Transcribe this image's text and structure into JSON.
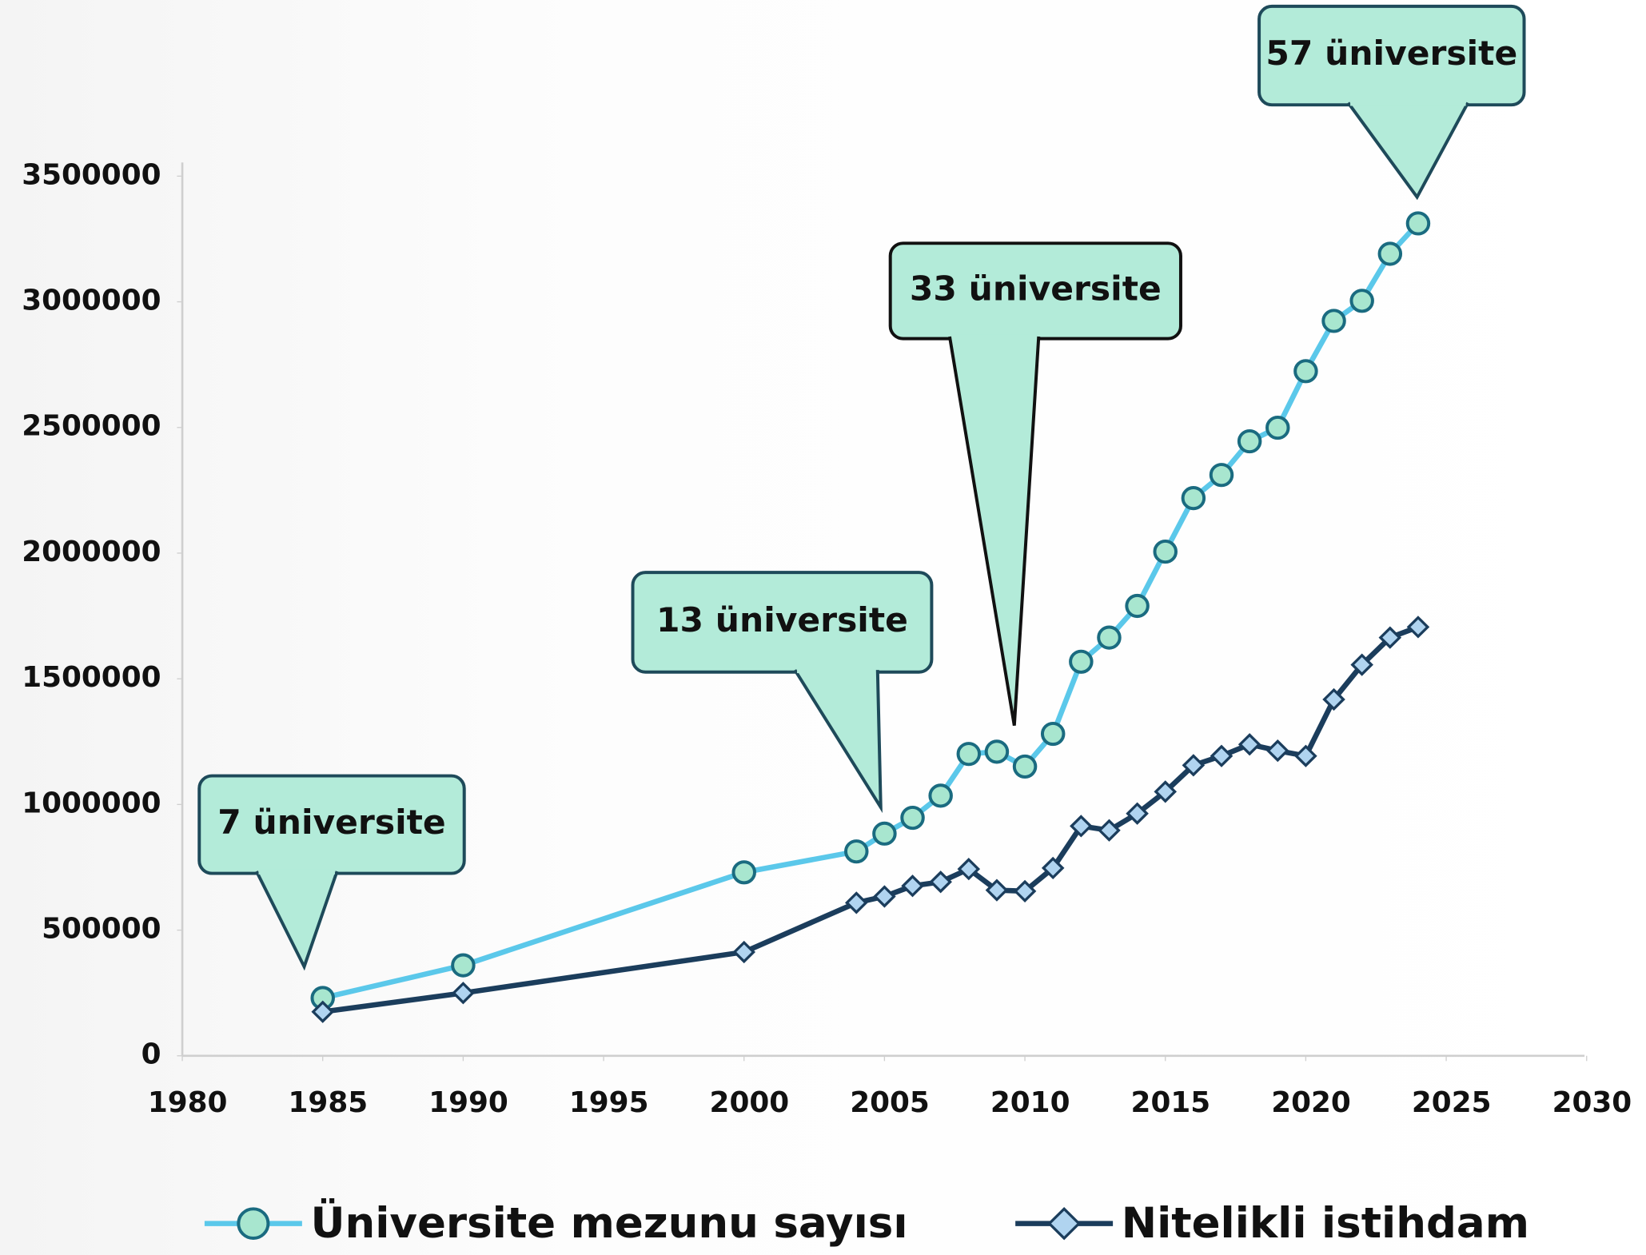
{
  "chart_data": {
    "type": "line",
    "x": [
      1985,
      1990,
      2000,
      2004,
      2005,
      2006,
      2007,
      2008,
      2009,
      2010,
      2011,
      2012,
      2013,
      2014,
      2015,
      2016,
      2017,
      2018,
      2019,
      2020,
      2021,
      2022,
      2023,
      2024
    ],
    "series": [
      {
        "name": "Üniversite mezunu sayısı",
        "color": "#5bc8ea",
        "marker": "circle",
        "values": [
          230000,
          360000,
          730000,
          813000,
          884000,
          947000,
          1035000,
          1201000,
          1210000,
          1151000,
          1281000,
          1568000,
          1664000,
          1790000,
          2006000,
          2219000,
          2311000,
          2445000,
          2499000,
          2724000,
          2924000,
          3004000,
          3191000,
          3312000
        ]
      },
      {
        "name": "Nitelikli istihdam",
        "color": "#1b3d5c",
        "marker": "diamond",
        "values": [
          175000,
          250000,
          413000,
          609000,
          634000,
          676000,
          692000,
          743000,
          659000,
          655000,
          747000,
          914000,
          897000,
          964000,
          1051000,
          1156000,
          1193000,
          1239000,
          1214000,
          1193000,
          1418000,
          1556000,
          1664000,
          1706000
        ]
      }
    ],
    "xlim": [
      1980,
      2030
    ],
    "xticks": [
      1980,
      1985,
      1990,
      1995,
      2000,
      2005,
      2010,
      2015,
      2020,
      2025,
      2030
    ],
    "ylim": [
      0,
      3500000
    ],
    "yticks": [
      0,
      500000,
      1000000,
      1500000,
      2000000,
      2500000,
      3000000,
      3500000
    ],
    "annotations": [
      "7 üniversite",
      "13  üniversite",
      "33 üniversite",
      "57 üniversite"
    ]
  }
}
